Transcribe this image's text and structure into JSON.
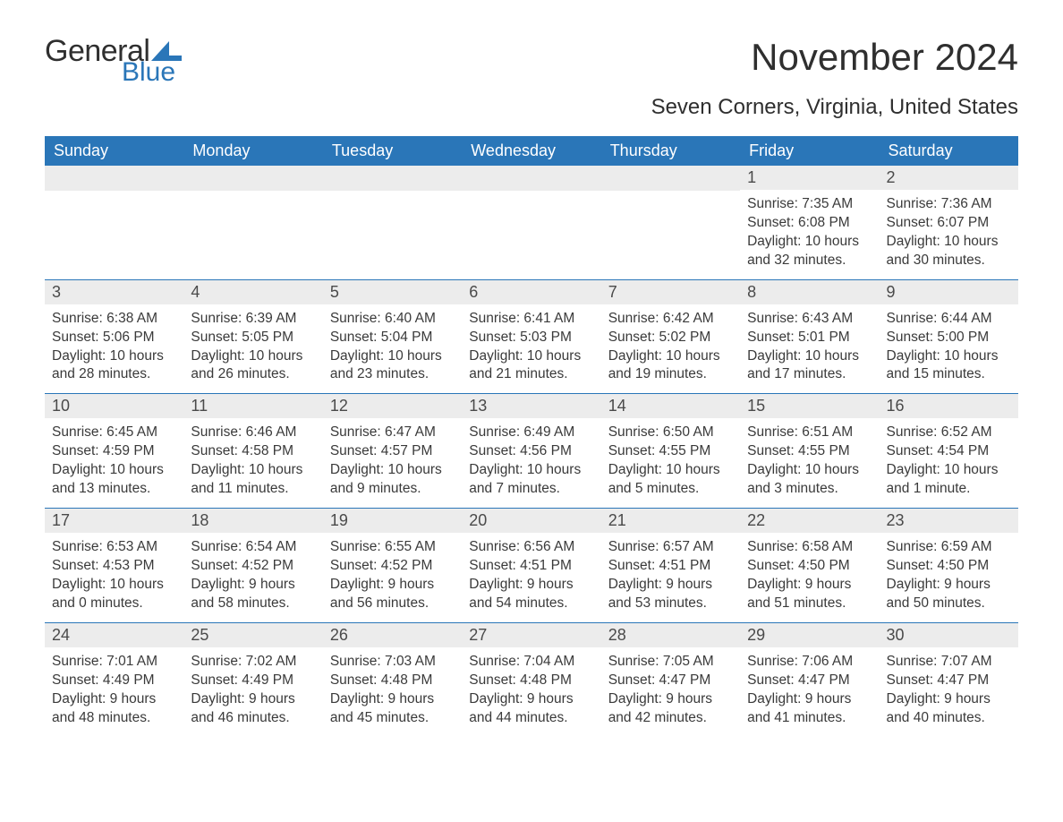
{
  "brand": {
    "prefix": "General",
    "suffix": "Blue",
    "sail_color": "#2a76b8"
  },
  "title": "November 2024",
  "location": "Seven Corners, Virginia, United States",
  "colors": {
    "header_bg": "#2a76b8",
    "header_text": "#ffffff",
    "daynum_bg": "#ececec",
    "border": "#2a76b8",
    "body_text": "#3a3a3a",
    "page_bg": "#ffffff"
  },
  "typography": {
    "title_fontsize": 42,
    "location_fontsize": 24,
    "dayheader_fontsize": 18,
    "daynum_fontsize": 18,
    "cell_fontsize": 15.5
  },
  "day_headers": [
    "Sunday",
    "Monday",
    "Tuesday",
    "Wednesday",
    "Thursday",
    "Friday",
    "Saturday"
  ],
  "weeks": [
    [
      {
        "blank": true
      },
      {
        "blank": true
      },
      {
        "blank": true
      },
      {
        "blank": true
      },
      {
        "blank": true
      },
      {
        "day": "1",
        "sunrise": "Sunrise: 7:35 AM",
        "sunset": "Sunset: 6:08 PM",
        "daylight1": "Daylight: 10 hours",
        "daylight2": "and 32 minutes."
      },
      {
        "day": "2",
        "sunrise": "Sunrise: 7:36 AM",
        "sunset": "Sunset: 6:07 PM",
        "daylight1": "Daylight: 10 hours",
        "daylight2": "and 30 minutes."
      }
    ],
    [
      {
        "day": "3",
        "sunrise": "Sunrise: 6:38 AM",
        "sunset": "Sunset: 5:06 PM",
        "daylight1": "Daylight: 10 hours",
        "daylight2": "and 28 minutes."
      },
      {
        "day": "4",
        "sunrise": "Sunrise: 6:39 AM",
        "sunset": "Sunset: 5:05 PM",
        "daylight1": "Daylight: 10 hours",
        "daylight2": "and 26 minutes."
      },
      {
        "day": "5",
        "sunrise": "Sunrise: 6:40 AM",
        "sunset": "Sunset: 5:04 PM",
        "daylight1": "Daylight: 10 hours",
        "daylight2": "and 23 minutes."
      },
      {
        "day": "6",
        "sunrise": "Sunrise: 6:41 AM",
        "sunset": "Sunset: 5:03 PM",
        "daylight1": "Daylight: 10 hours",
        "daylight2": "and 21 minutes."
      },
      {
        "day": "7",
        "sunrise": "Sunrise: 6:42 AM",
        "sunset": "Sunset: 5:02 PM",
        "daylight1": "Daylight: 10 hours",
        "daylight2": "and 19 minutes."
      },
      {
        "day": "8",
        "sunrise": "Sunrise: 6:43 AM",
        "sunset": "Sunset: 5:01 PM",
        "daylight1": "Daylight: 10 hours",
        "daylight2": "and 17 minutes."
      },
      {
        "day": "9",
        "sunrise": "Sunrise: 6:44 AM",
        "sunset": "Sunset: 5:00 PM",
        "daylight1": "Daylight: 10 hours",
        "daylight2": "and 15 minutes."
      }
    ],
    [
      {
        "day": "10",
        "sunrise": "Sunrise: 6:45 AM",
        "sunset": "Sunset: 4:59 PM",
        "daylight1": "Daylight: 10 hours",
        "daylight2": "and 13 minutes."
      },
      {
        "day": "11",
        "sunrise": "Sunrise: 6:46 AM",
        "sunset": "Sunset: 4:58 PM",
        "daylight1": "Daylight: 10 hours",
        "daylight2": "and 11 minutes."
      },
      {
        "day": "12",
        "sunrise": "Sunrise: 6:47 AM",
        "sunset": "Sunset: 4:57 PM",
        "daylight1": "Daylight: 10 hours",
        "daylight2": "and 9 minutes."
      },
      {
        "day": "13",
        "sunrise": "Sunrise: 6:49 AM",
        "sunset": "Sunset: 4:56 PM",
        "daylight1": "Daylight: 10 hours",
        "daylight2": "and 7 minutes."
      },
      {
        "day": "14",
        "sunrise": "Sunrise: 6:50 AM",
        "sunset": "Sunset: 4:55 PM",
        "daylight1": "Daylight: 10 hours",
        "daylight2": "and 5 minutes."
      },
      {
        "day": "15",
        "sunrise": "Sunrise: 6:51 AM",
        "sunset": "Sunset: 4:55 PM",
        "daylight1": "Daylight: 10 hours",
        "daylight2": "and 3 minutes."
      },
      {
        "day": "16",
        "sunrise": "Sunrise: 6:52 AM",
        "sunset": "Sunset: 4:54 PM",
        "daylight1": "Daylight: 10 hours",
        "daylight2": "and 1 minute."
      }
    ],
    [
      {
        "day": "17",
        "sunrise": "Sunrise: 6:53 AM",
        "sunset": "Sunset: 4:53 PM",
        "daylight1": "Daylight: 10 hours",
        "daylight2": "and 0 minutes."
      },
      {
        "day": "18",
        "sunrise": "Sunrise: 6:54 AM",
        "sunset": "Sunset: 4:52 PM",
        "daylight1": "Daylight: 9 hours",
        "daylight2": "and 58 minutes."
      },
      {
        "day": "19",
        "sunrise": "Sunrise: 6:55 AM",
        "sunset": "Sunset: 4:52 PM",
        "daylight1": "Daylight: 9 hours",
        "daylight2": "and 56 minutes."
      },
      {
        "day": "20",
        "sunrise": "Sunrise: 6:56 AM",
        "sunset": "Sunset: 4:51 PM",
        "daylight1": "Daylight: 9 hours",
        "daylight2": "and 54 minutes."
      },
      {
        "day": "21",
        "sunrise": "Sunrise: 6:57 AM",
        "sunset": "Sunset: 4:51 PM",
        "daylight1": "Daylight: 9 hours",
        "daylight2": "and 53 minutes."
      },
      {
        "day": "22",
        "sunrise": "Sunrise: 6:58 AM",
        "sunset": "Sunset: 4:50 PM",
        "daylight1": "Daylight: 9 hours",
        "daylight2": "and 51 minutes."
      },
      {
        "day": "23",
        "sunrise": "Sunrise: 6:59 AM",
        "sunset": "Sunset: 4:50 PM",
        "daylight1": "Daylight: 9 hours",
        "daylight2": "and 50 minutes."
      }
    ],
    [
      {
        "day": "24",
        "sunrise": "Sunrise: 7:01 AM",
        "sunset": "Sunset: 4:49 PM",
        "daylight1": "Daylight: 9 hours",
        "daylight2": "and 48 minutes."
      },
      {
        "day": "25",
        "sunrise": "Sunrise: 7:02 AM",
        "sunset": "Sunset: 4:49 PM",
        "daylight1": "Daylight: 9 hours",
        "daylight2": "and 46 minutes."
      },
      {
        "day": "26",
        "sunrise": "Sunrise: 7:03 AM",
        "sunset": "Sunset: 4:48 PM",
        "daylight1": "Daylight: 9 hours",
        "daylight2": "and 45 minutes."
      },
      {
        "day": "27",
        "sunrise": "Sunrise: 7:04 AM",
        "sunset": "Sunset: 4:48 PM",
        "daylight1": "Daylight: 9 hours",
        "daylight2": "and 44 minutes."
      },
      {
        "day": "28",
        "sunrise": "Sunrise: 7:05 AM",
        "sunset": "Sunset: 4:47 PM",
        "daylight1": "Daylight: 9 hours",
        "daylight2": "and 42 minutes."
      },
      {
        "day": "29",
        "sunrise": "Sunrise: 7:06 AM",
        "sunset": "Sunset: 4:47 PM",
        "daylight1": "Daylight: 9 hours",
        "daylight2": "and 41 minutes."
      },
      {
        "day": "30",
        "sunrise": "Sunrise: 7:07 AM",
        "sunset": "Sunset: 4:47 PM",
        "daylight1": "Daylight: 9 hours",
        "daylight2": "and 40 minutes."
      }
    ]
  ]
}
